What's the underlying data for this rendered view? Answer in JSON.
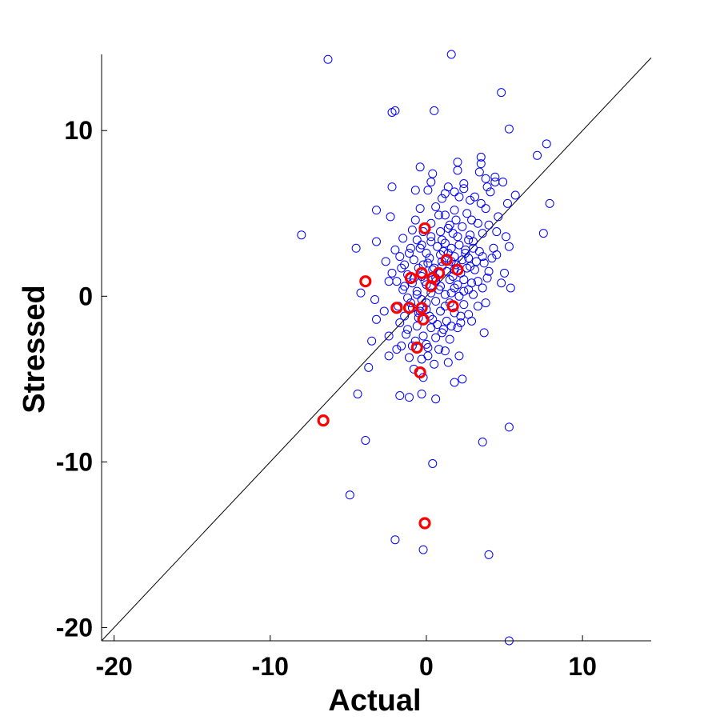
{
  "chart_data": {
    "type": "scatter",
    "title": "",
    "xlabel": "Actual",
    "ylabel": "Stressed",
    "xlim": [
      -20.8,
      14.4
    ],
    "ylim": [
      -20.8,
      14.6
    ],
    "xticks": [
      -20,
      -10,
      0,
      10
    ],
    "xtick_labels": [
      "-20",
      "-10",
      "0",
      "10"
    ],
    "yticks": [
      -20,
      -10,
      0,
      10
    ],
    "ytick_labels": [
      "-20",
      "-10",
      "0",
      "10"
    ],
    "grid": false,
    "legend": null,
    "reference_line": {
      "type": "identity",
      "slope": 1,
      "intercept": 0,
      "color": "#000000"
    },
    "series": [
      {
        "marker": "open-circle",
        "color": "#0000ff",
        "points": [
          [
            -6.3,
            14.3
          ],
          [
            1.6,
            14.6
          ],
          [
            -2.0,
            11.2
          ],
          [
            -2.2,
            11.1
          ],
          [
            0.5,
            11.2
          ],
          [
            4.8,
            12.3
          ],
          [
            5.3,
            10.1
          ],
          [
            7.7,
            9.2
          ],
          [
            7.1,
            8.5
          ],
          [
            3.5,
            8.4
          ],
          [
            2.0,
            8.1
          ],
          [
            3.5,
            8.0
          ],
          [
            -0.4,
            7.8
          ],
          [
            2.0,
            7.6
          ],
          [
            3.4,
            7.5
          ],
          [
            4.4,
            7.2
          ],
          [
            3.8,
            7.1
          ],
          [
            4.9,
            6.9
          ],
          [
            0.4,
            7.4
          ],
          [
            0.3,
            6.9
          ],
          [
            1.4,
            6.6
          ],
          [
            2.4,
            6.8
          ],
          [
            -2.2,
            6.6
          ],
          [
            0.1,
            6.4
          ],
          [
            -0.7,
            6.4
          ],
          [
            1.2,
            6.2
          ],
          [
            2.1,
            6.0
          ],
          [
            2.8,
            5.8
          ],
          [
            3.5,
            5.6
          ],
          [
            4.1,
            6.3
          ],
          [
            5.7,
            6.1
          ],
          [
            7.9,
            5.6
          ],
          [
            5.2,
            5.6
          ],
          [
            -3.2,
            5.2
          ],
          [
            -0.4,
            5.3
          ],
          [
            0.6,
            5.4
          ],
          [
            1.8,
            5.2
          ],
          [
            2.6,
            5.0
          ],
          [
            1.2,
            4.9
          ],
          [
            -2.3,
            4.8
          ],
          [
            -0.7,
            4.6
          ],
          [
            0.3,
            4.4
          ],
          [
            1.5,
            4.3
          ],
          [
            2.3,
            4.2
          ],
          [
            3.3,
            4.4
          ],
          [
            4.0,
            4.3
          ],
          [
            -0.9,
            4.0
          ],
          [
            0.9,
            3.9
          ],
          [
            1.7,
            3.8
          ],
          [
            2.8,
            3.7
          ],
          [
            3.6,
            3.8
          ],
          [
            4.5,
            3.9
          ],
          [
            -8.0,
            3.7
          ],
          [
            -1.5,
            3.5
          ],
          [
            -0.6,
            3.4
          ],
          [
            0.3,
            3.3
          ],
          [
            1.2,
            3.2
          ],
          [
            2.1,
            3.1
          ],
          [
            3.0,
            3.3
          ],
          [
            5.1,
            3.6
          ],
          [
            7.5,
            3.8
          ],
          [
            -3.2,
            3.3
          ],
          [
            -0.3,
            3.1
          ],
          [
            0.7,
            3.0
          ],
          [
            1.6,
            2.9
          ],
          [
            2.5,
            2.8
          ],
          [
            3.4,
            2.7
          ],
          [
            4.3,
            2.9
          ],
          [
            5.3,
            3.0
          ],
          [
            -4.5,
            2.9
          ],
          [
            -2.0,
            2.8
          ],
          [
            -1.1,
            2.6
          ],
          [
            0.0,
            2.6
          ],
          [
            0.9,
            2.5
          ],
          [
            1.8,
            2.4
          ],
          [
            2.7,
            2.3
          ],
          [
            3.6,
            2.4
          ],
          [
            4.5,
            2.5
          ],
          [
            -1.7,
            2.4
          ],
          [
            -0.8,
            2.2
          ],
          [
            0.1,
            2.0
          ],
          [
            1.0,
            2.1
          ],
          [
            1.9,
            1.9
          ],
          [
            2.8,
            1.8
          ],
          [
            3.7,
            2.0
          ],
          [
            -2.6,
            2.1
          ],
          [
            -1.4,
            1.9
          ],
          [
            -0.5,
            1.7
          ],
          [
            0.4,
            1.6
          ],
          [
            1.3,
            1.5
          ],
          [
            2.2,
            1.4
          ],
          [
            3.1,
            1.6
          ],
          [
            4.0,
            1.5
          ],
          [
            5.0,
            1.4
          ],
          [
            -2.2,
            1.4
          ],
          [
            -1.2,
            1.3
          ],
          [
            -0.3,
            1.2
          ],
          [
            0.6,
            1.1
          ],
          [
            1.5,
            1.0
          ],
          [
            2.4,
            1.0
          ],
          [
            3.3,
            0.9
          ],
          [
            4.8,
            0.8
          ],
          [
            -1.9,
            0.9
          ],
          [
            -0.9,
            0.8
          ],
          [
            0.0,
            0.7
          ],
          [
            0.9,
            0.6
          ],
          [
            1.8,
            0.5
          ],
          [
            2.7,
            0.4
          ],
          [
            3.6,
            0.5
          ],
          [
            5.4,
            0.5
          ],
          [
            -4.2,
            0.2
          ],
          [
            -1.5,
            0.4
          ],
          [
            -0.6,
            0.3
          ],
          [
            0.3,
            0.2
          ],
          [
            1.2,
            0.1
          ],
          [
            2.1,
            0.0
          ],
          [
            3.0,
            0.1
          ],
          [
            -1.2,
            -0.1
          ],
          [
            -0.3,
            -0.2
          ],
          [
            0.6,
            -0.3
          ],
          [
            1.5,
            -0.4
          ],
          [
            2.4,
            -0.5
          ],
          [
            3.3,
            -0.6
          ],
          [
            3.8,
            -0.4
          ],
          [
            -3.3,
            -0.2
          ],
          [
            -1.8,
            -0.6
          ],
          [
            -0.9,
            -0.7
          ],
          [
            0.0,
            -0.8
          ],
          [
            0.9,
            -0.9
          ],
          [
            1.8,
            -1.0
          ],
          [
            2.7,
            -1.1
          ],
          [
            -2.7,
            -0.9
          ],
          [
            -1.4,
            -1.2
          ],
          [
            -0.5,
            -1.3
          ],
          [
            0.4,
            -1.4
          ],
          [
            1.3,
            -1.5
          ],
          [
            2.2,
            -1.6
          ],
          [
            2.9,
            -1.5
          ],
          [
            -3.2,
            -1.4
          ],
          [
            -1.7,
            -1.6
          ],
          [
            -0.6,
            -1.8
          ],
          [
            0.3,
            -1.9
          ],
          [
            1.1,
            -2.0
          ],
          [
            2.0,
            -1.9
          ],
          [
            -2.4,
            -2.4
          ],
          [
            -1.3,
            -2.3
          ],
          [
            -0.2,
            -2.4
          ],
          [
            0.6,
            -2.5
          ],
          [
            1.5,
            -2.6
          ],
          [
            3.7,
            -2.2
          ],
          [
            -3.5,
            -2.7
          ],
          [
            -1.9,
            -3.2
          ],
          [
            -0.9,
            -3.0
          ],
          [
            0.1,
            -3.1
          ],
          [
            1.2,
            -3.3
          ],
          [
            2.1,
            -3.6
          ],
          [
            -2.4,
            -3.6
          ],
          [
            -1.1,
            -3.7
          ],
          [
            0.1,
            -3.6
          ],
          [
            1.4,
            -4.0
          ],
          [
            -3.7,
            -4.3
          ],
          [
            -0.8,
            -4.4
          ],
          [
            0.5,
            -4.1
          ],
          [
            -0.2,
            -4.9
          ],
          [
            1.8,
            -5.2
          ],
          [
            2.3,
            -5.0
          ],
          [
            -4.4,
            -5.9
          ],
          [
            -1.7,
            -6.0
          ],
          [
            -1.1,
            -6.1
          ],
          [
            -0.3,
            -5.9
          ],
          [
            0.6,
            -6.2
          ],
          [
            -3.9,
            -8.7
          ],
          [
            3.6,
            -8.8
          ],
          [
            5.3,
            -7.9
          ],
          [
            0.4,
            -10.1
          ],
          [
            -4.9,
            -12.0
          ],
          [
            -2.0,
            -14.7
          ],
          [
            -0.2,
            -15.3
          ],
          [
            4.0,
            -15.6
          ],
          [
            5.3,
            -20.8
          ],
          [
            -0.1,
            0.9
          ],
          [
            0.5,
            1.7
          ],
          [
            1.1,
            2.7
          ],
          [
            1.7,
            1.2
          ],
          [
            2.3,
            2.2
          ],
          [
            -0.4,
            2.9
          ],
          [
            0.2,
            2.3
          ],
          [
            0.8,
            0.4
          ],
          [
            1.4,
            2.6
          ],
          [
            2.0,
            0.7
          ],
          [
            2.6,
            1.7
          ],
          [
            3.2,
            2.1
          ],
          [
            0.0,
            -0.4
          ],
          [
            0.6,
            0.9
          ],
          [
            1.2,
            -0.6
          ],
          [
            1.8,
            1.6
          ],
          [
            2.4,
            0.3
          ],
          [
            -0.6,
            0.1
          ],
          [
            0.3,
            3.6
          ],
          [
            1.0,
            3.4
          ],
          [
            1.9,
            4.6
          ],
          [
            2.7,
            3.4
          ],
          [
            -1.0,
            2.9
          ],
          [
            -0.2,
            1.9
          ],
          [
            0.9,
            1.4
          ],
          [
            1.6,
            0.2
          ],
          [
            2.2,
            -1.2
          ],
          [
            -0.4,
            -0.9
          ],
          [
            0.7,
            -1.7
          ],
          [
            1.3,
            2.3
          ],
          [
            2.9,
            0.8
          ],
          [
            3.9,
            1.1
          ],
          [
            4.2,
            2.3
          ],
          [
            -1.6,
            1.7
          ],
          [
            -0.8,
            1.1
          ],
          [
            0.4,
            1.0
          ],
          [
            1.0,
            1.8
          ],
          [
            1.6,
            2.1
          ],
          [
            2.5,
            2.6
          ],
          [
            3.0,
            2.9
          ],
          [
            -0.2,
            3.9
          ],
          [
            0.8,
            4.9
          ],
          [
            1.4,
            4.1
          ],
          [
            2.0,
            3.6
          ],
          [
            2.9,
            4.6
          ],
          [
            3.8,
            5.3
          ],
          [
            4.6,
            4.8
          ],
          [
            1.0,
            5.9
          ],
          [
            1.8,
            6.3
          ],
          [
            2.4,
            6.5
          ],
          [
            3.1,
            6.0
          ],
          [
            3.9,
            6.6
          ],
          [
            4.4,
            6.9
          ],
          [
            -1.4,
            0.6
          ],
          [
            -2.4,
            0.9
          ],
          [
            -1.0,
            -0.4
          ],
          [
            -0.5,
            -1.0
          ],
          [
            0.2,
            -1.2
          ],
          [
            1.0,
            -2.2
          ],
          [
            1.6,
            -1.8
          ],
          [
            -1.2,
            -2.0
          ],
          [
            -0.7,
            -2.7
          ],
          [
            0.0,
            -2.9
          ],
          [
            0.8,
            -3.2
          ],
          [
            -1.6,
            -3.0
          ],
          [
            -0.3,
            -3.8
          ]
        ]
      },
      {
        "marker": "open-circle",
        "color": "#ff0000",
        "points": [
          [
            -0.1,
            4.1
          ],
          [
            1.3,
            2.2
          ],
          [
            2.0,
            1.6
          ],
          [
            0.8,
            1.4
          ],
          [
            0.4,
            1.1
          ],
          [
            -0.3,
            1.4
          ],
          [
            -1.0,
            1.1
          ],
          [
            0.3,
            0.6
          ],
          [
            -3.9,
            0.9
          ],
          [
            -1.9,
            -0.7
          ],
          [
            -1.1,
            -0.7
          ],
          [
            -0.3,
            -0.7
          ],
          [
            1.7,
            -0.6
          ],
          [
            -0.2,
            -1.4
          ],
          [
            -0.6,
            -3.1
          ],
          [
            -0.4,
            -4.6
          ],
          [
            -6.6,
            -7.5
          ],
          [
            -0.1,
            -13.7
          ]
        ]
      }
    ]
  }
}
